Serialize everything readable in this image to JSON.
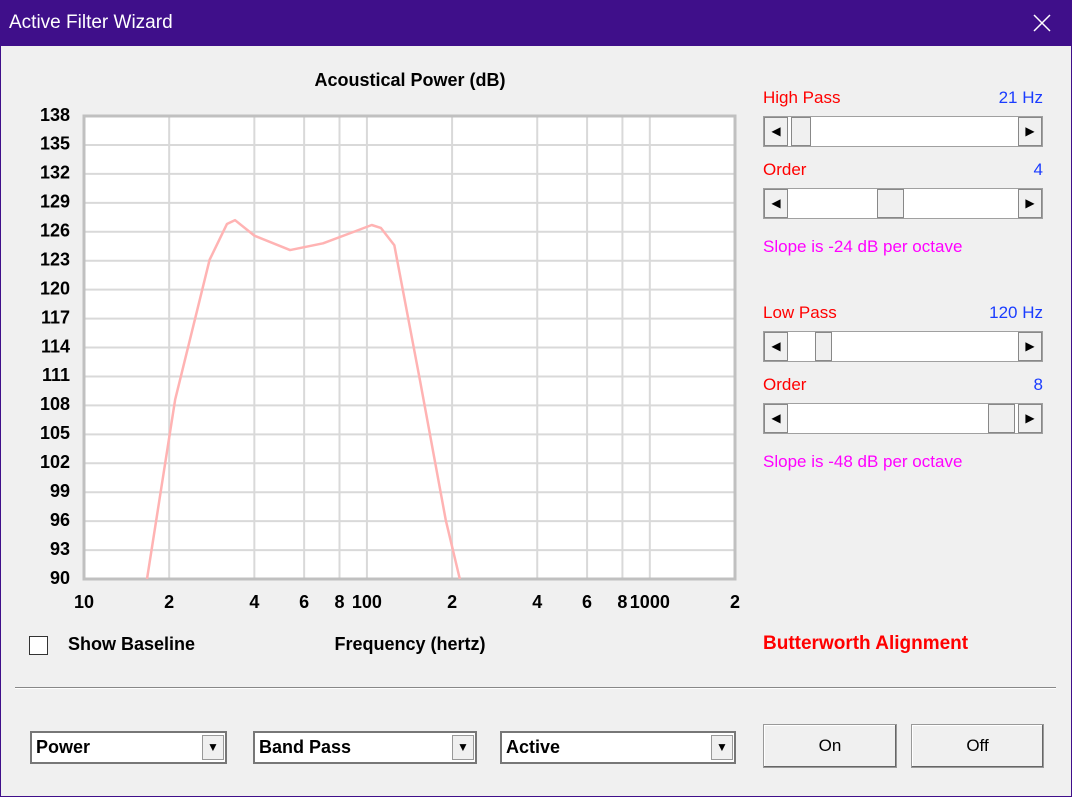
{
  "window": {
    "title": "Active Filter Wizard"
  },
  "chart_data": {
    "type": "line",
    "title": "Acoustical Power (dB)",
    "x_label": "Frequency (hertz)",
    "x": [
      16.7,
      21,
      27.8,
      32,
      34.2,
      40,
      53.5,
      70,
      90,
      104,
      112,
      125,
      154,
      190,
      213
    ],
    "values": [
      90,
      108.6,
      123.1,
      126.8,
      127.2,
      125.6,
      124.1,
      124.8,
      126,
      126.7,
      126.4,
      124.6,
      110.6,
      96.1,
      90
    ],
    "color": "#ffb3b3",
    "xlim": [
      10,
      2000
    ],
    "ylim": [
      90,
      138
    ],
    "x_log": true,
    "grid": true,
    "xticks": [
      10,
      {
        "value": 20,
        "label": "2"
      },
      {
        "value": 40,
        "label": "4"
      },
      {
        "value": 60,
        "label": "6"
      },
      {
        "value": 80,
        "label": "8"
      },
      100,
      {
        "value": 200,
        "label": "2"
      },
      {
        "value": 400,
        "label": "4"
      },
      {
        "value": 600,
        "label": "6"
      },
      {
        "value": 800,
        "label": "8"
      },
      1000,
      {
        "value": 2000,
        "label": "2"
      }
    ],
    "yticks": [
      90,
      93,
      96,
      99,
      102,
      105,
      108,
      111,
      114,
      117,
      120,
      123,
      126,
      129,
      132,
      135,
      138
    ]
  },
  "controls": {
    "high_pass_label": "High Pass",
    "high_pass_value": "21 Hz",
    "high_pass_order_label": "Order",
    "high_pass_order_value": "4",
    "high_pass_slope": "Slope is -24 dB per octave",
    "low_pass_label": "Low Pass",
    "low_pass_value": "120 Hz",
    "low_pass_order_label": "Order",
    "low_pass_order_value": "8",
    "low_pass_slope": "Slope is -48 dB per octave",
    "alignment": "Butterworth Alignment",
    "show_baseline": "Show Baseline",
    "dropdowns": [
      "Power",
      "Band Pass",
      "Active"
    ],
    "buttons": [
      "On",
      "Off"
    ]
  }
}
